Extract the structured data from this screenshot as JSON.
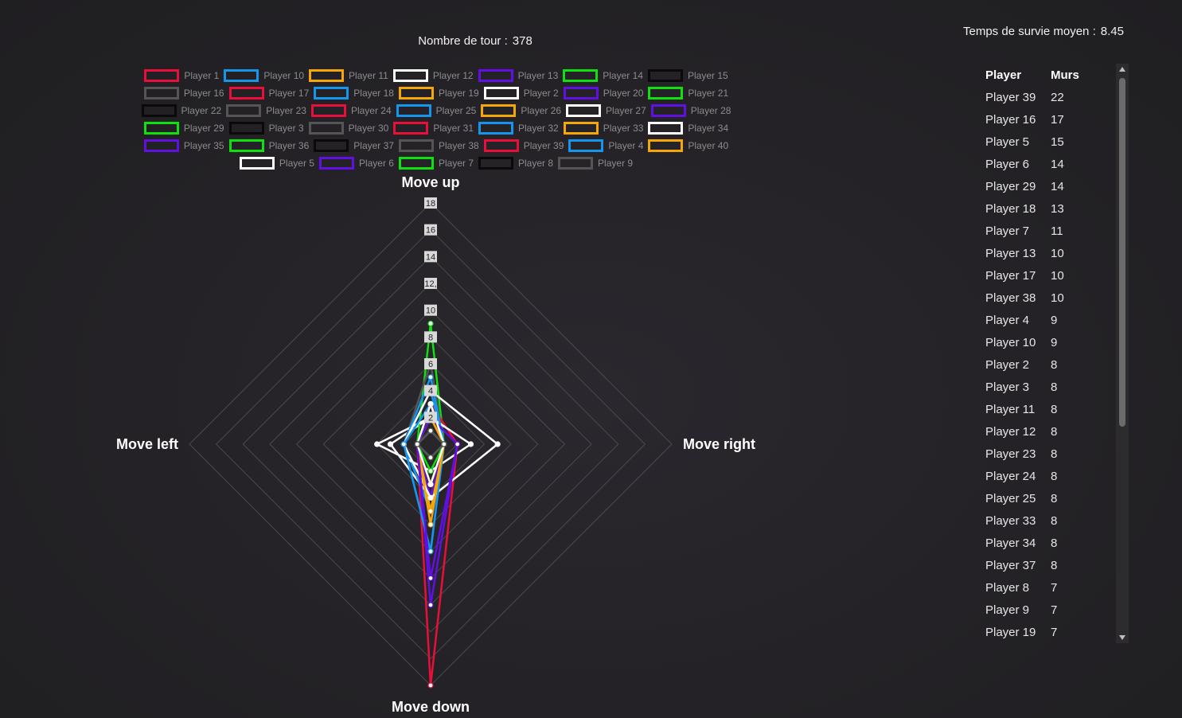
{
  "header": {
    "turns_label": "Nombre de tour :",
    "turns_value": "378",
    "survival_label": "Temps de survie moyen :",
    "survival_value": "8.45"
  },
  "legend": [
    [
      "Player 1",
      "Player 10",
      "Player 11",
      "Player 12",
      "Player 13",
      "Player 14",
      "Player 15"
    ],
    [
      "Player 16",
      "Player 17",
      "Player 18",
      "Player 19",
      "Player 2",
      "Player 20",
      "Player 21"
    ],
    [
      "Player 22",
      "Player 23",
      "Player 24",
      "Player 25",
      "Player 26",
      "Player 27",
      "Player 28"
    ],
    [
      "Player 29",
      "Player 3",
      "Player 30",
      "Player 31",
      "Player 32",
      "Player 33",
      "Player 34"
    ],
    [
      "Player 35",
      "Player 36",
      "Player 37",
      "Player 38",
      "Player 39",
      "Player 4",
      "Player 40"
    ],
    [
      "Player 5",
      "Player 6",
      "Player 7",
      "Player 8",
      "Player 9"
    ]
  ],
  "palette": [
    "#e8103a",
    "#1596ec",
    "#f5a70a",
    "#ffffff",
    "#6010e0",
    "#10e010",
    "#0a0a0a",
    "#555555"
  ],
  "chart_data": {
    "type": "radar",
    "axes": [
      "Move up",
      "Move right",
      "Move down",
      "Move left"
    ],
    "rlim": [
      0,
      18
    ],
    "ticks": [
      2,
      4,
      6,
      8,
      10,
      12,
      14,
      16,
      18
    ],
    "tick_labels": [
      "2",
      "4",
      "6",
      "8",
      "10",
      "12,",
      "14",
      "16",
      "18"
    ],
    "grid": true,
    "series": [
      {
        "name": "Player 1",
        "values": [
          2,
          1,
          1,
          1
        ]
      },
      {
        "name": "Player 10",
        "values": [
          4,
          1,
          5,
          2
        ]
      },
      {
        "name": "Player 11",
        "values": [
          3,
          1,
          3,
          1
        ]
      },
      {
        "name": "Player 12",
        "values": [
          2,
          1,
          4,
          3
        ]
      },
      {
        "name": "Player 13",
        "values": [
          1,
          1,
          6,
          1
        ]
      },
      {
        "name": "Player 14",
        "values": [
          9,
          1,
          3,
          1
        ]
      },
      {
        "name": "Player 15",
        "values": [
          1,
          1,
          1,
          1
        ]
      },
      {
        "name": "Player 16",
        "values": [
          6,
          1,
          4,
          2
        ]
      },
      {
        "name": "Player 17",
        "values": [
          3,
          2,
          18,
          1
        ]
      },
      {
        "name": "Player 18",
        "values": [
          4,
          1,
          5,
          2
        ]
      },
      {
        "name": "Player 19",
        "values": [
          3,
          1,
          5,
          1
        ]
      },
      {
        "name": "Player 2",
        "values": [
          2,
          3,
          2,
          4
        ]
      },
      {
        "name": "Player 20",
        "values": [
          2,
          1,
          4,
          1
        ]
      },
      {
        "name": "Player 21",
        "values": [
          1,
          1,
          1,
          1
        ]
      },
      {
        "name": "Player 22",
        "values": [
          1,
          1,
          2,
          1
        ]
      },
      {
        "name": "Player 23",
        "values": [
          1,
          1,
          1,
          1
        ]
      },
      {
        "name": "Player 24",
        "values": [
          3,
          1,
          3,
          1
        ]
      },
      {
        "name": "Player 25",
        "values": [
          5,
          1,
          8,
          2
        ]
      },
      {
        "name": "Player 26",
        "values": [
          2,
          1,
          5,
          1
        ]
      },
      {
        "name": "Player 27",
        "values": [
          4,
          5,
          4,
          2
        ]
      },
      {
        "name": "Player 28",
        "values": [
          2,
          2,
          12,
          1
        ]
      },
      {
        "name": "Player 29",
        "values": [
          3,
          1,
          2,
          1
        ]
      },
      {
        "name": "Player 3",
        "values": [
          1,
          1,
          1,
          1
        ]
      },
      {
        "name": "Player 30",
        "values": [
          1,
          1,
          1,
          1
        ]
      },
      {
        "name": "Player 31",
        "values": [
          1,
          1,
          1,
          1
        ]
      },
      {
        "name": "Player 32",
        "values": [
          3,
          1,
          8,
          2
        ]
      },
      {
        "name": "Player 33",
        "values": [
          2,
          1,
          6,
          1
        ]
      },
      {
        "name": "Player 34",
        "values": [
          1,
          1,
          1,
          1
        ]
      },
      {
        "name": "Player 35",
        "values": [
          2,
          2,
          10,
          1
        ]
      },
      {
        "name": "Player 36",
        "values": [
          1,
          1,
          1,
          1
        ]
      },
      {
        "name": "Player 37",
        "values": [
          1,
          1,
          1,
          1
        ]
      },
      {
        "name": "Player 38",
        "values": [
          1,
          1,
          1,
          1
        ]
      },
      {
        "name": "Player 39",
        "values": [
          1,
          1,
          1,
          1
        ]
      },
      {
        "name": "Player 4",
        "values": [
          1,
          1,
          1,
          1
        ]
      },
      {
        "name": "Player 40",
        "values": [
          1,
          1,
          1,
          1
        ]
      },
      {
        "name": "Player 5",
        "values": [
          3,
          1,
          3,
          1
        ]
      },
      {
        "name": "Player 6",
        "values": [
          1,
          1,
          1,
          1
        ]
      },
      {
        "name": "Player 7",
        "values": [
          1,
          1,
          1,
          1
        ]
      },
      {
        "name": "Player 8",
        "values": [
          1,
          1,
          1,
          1
        ]
      },
      {
        "name": "Player 9",
        "values": [
          1,
          1,
          1,
          1
        ]
      }
    ]
  },
  "table": {
    "headers": [
      "Player",
      "Murs"
    ],
    "rows": [
      [
        "Player 39",
        "22"
      ],
      [
        "Player 16",
        "17"
      ],
      [
        "Player 5",
        "15"
      ],
      [
        "Player 6",
        "14"
      ],
      [
        "Player 29",
        "14"
      ],
      [
        "Player 18",
        "13"
      ],
      [
        "Player 7",
        "11"
      ],
      [
        "Player 13",
        "10"
      ],
      [
        "Player 17",
        "10"
      ],
      [
        "Player 38",
        "10"
      ],
      [
        "Player 4",
        "9"
      ],
      [
        "Player 10",
        "9"
      ],
      [
        "Player 2",
        "8"
      ],
      [
        "Player 3",
        "8"
      ],
      [
        "Player 11",
        "8"
      ],
      [
        "Player 12",
        "8"
      ],
      [
        "Player 23",
        "8"
      ],
      [
        "Player 24",
        "8"
      ],
      [
        "Player 25",
        "8"
      ],
      [
        "Player 33",
        "8"
      ],
      [
        "Player 34",
        "8"
      ],
      [
        "Player 37",
        "8"
      ],
      [
        "Player 8",
        "7"
      ],
      [
        "Player 9",
        "7"
      ],
      [
        "Player 19",
        "7"
      ]
    ]
  }
}
